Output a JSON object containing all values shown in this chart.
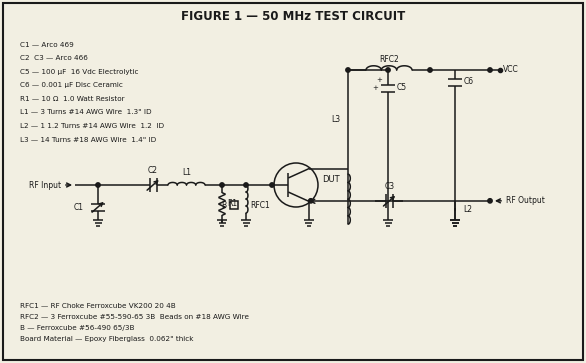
{
  "title": "FIGURE 1 — 50 MHz TEST CIRCUIT",
  "bg_color": "#f2efe2",
  "line_color": "#1a1a1a",
  "notes_top": [
    "C1 — Arco 469",
    "C2  C3 — Arco 466",
    "C5 — 100 μF  16 Vdc Electrolytic",
    "C6 — 0.001 μF Disc Ceramic",
    "R1 — 10 Ω  1.0 Watt Resistor",
    "L1 — 3 Turns #14 AWG Wire  1.3\" ID",
    "L2 — 1 1.2 Turns #14 AWG Wire  1.2  ID",
    "L3 — 14 Turns #18 AWG Wire  1.4\" ID"
  ],
  "notes_bot": [
    "RFC1 — RF Choke Ferroxcube VK200 20 4B",
    "RFC2 — 3 Ferroxcube #55-590-65 3B  Beads on #18 AWG Wire",
    "B — Ferroxcube #56-490 65/3B",
    "Board Material — Epoxy Fiberglass  0.062\" thick"
  ]
}
